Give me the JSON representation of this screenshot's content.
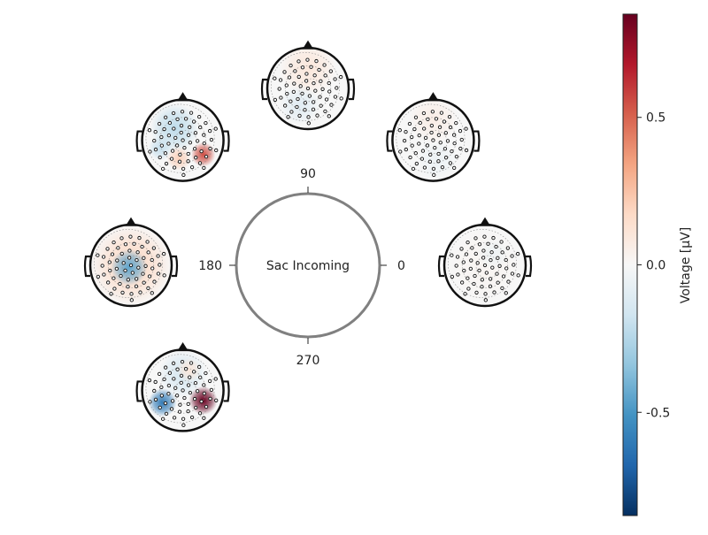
{
  "chart_data": {
    "type": "circular_topoplot",
    "center_label": "Sac Incoming",
    "angle_ticks": [
      "0",
      "90",
      "180",
      "270"
    ],
    "colorbar": {
      "label": "Voltage [µV]",
      "range": [
        -0.85,
        0.85
      ],
      "ticks": [
        -0.5,
        0.0,
        0.5
      ],
      "tick_labels": [
        "-0.5",
        "0.0",
        "0.5"
      ],
      "colormap": [
        "#053061",
        "#2166ac",
        "#4393c3",
        "#92c5de",
        "#d1e5f0",
        "#f7f7f7",
        "#fddbc7",
        "#f4a582",
        "#d6604d",
        "#b2182b",
        "#67001f"
      ]
    },
    "topoplots": [
      {
        "angle": 0,
        "blobs": [
          {
            "x": 0.0,
            "y": 0.0,
            "r": 0.9,
            "v": 0.02
          },
          {
            "x": 0.2,
            "y": -0.3,
            "r": 0.4,
            "v": -0.04
          }
        ]
      },
      {
        "angle": 45,
        "blobs": [
          {
            "x": 0.0,
            "y": -0.5,
            "r": 0.6,
            "v": 0.06
          },
          {
            "x": 0.1,
            "y": 0.5,
            "r": 0.5,
            "v": -0.05
          }
        ]
      },
      {
        "angle": 90,
        "blobs": [
          {
            "x": 0.0,
            "y": -0.5,
            "r": 0.7,
            "v": 0.1
          },
          {
            "x": -0.2,
            "y": 0.4,
            "r": 0.5,
            "v": -0.1
          }
        ]
      },
      {
        "angle": 135,
        "blobs": [
          {
            "x": -0.2,
            "y": -0.3,
            "r": 0.6,
            "v": -0.22
          },
          {
            "x": 0.5,
            "y": 0.35,
            "r": 0.3,
            "v": 0.55
          },
          {
            "x": -0.55,
            "y": 0.2,
            "r": 0.3,
            "v": -0.2
          },
          {
            "x": -0.1,
            "y": 0.45,
            "r": 0.3,
            "v": 0.2
          }
        ]
      },
      {
        "angle": 180,
        "blobs": [
          {
            "x": 0.0,
            "y": 0.0,
            "r": 1.0,
            "v": 0.18
          },
          {
            "x": -0.05,
            "y": 0.05,
            "r": 0.45,
            "v": -0.45
          }
        ]
      },
      {
        "angle": 225,
        "blobs": [
          {
            "x": 0.0,
            "y": -0.4,
            "r": 0.6,
            "v": -0.15
          },
          {
            "x": -0.5,
            "y": 0.3,
            "r": 0.35,
            "v": -0.6
          },
          {
            "x": 0.5,
            "y": 0.25,
            "r": 0.35,
            "v": 0.85
          },
          {
            "x": 0.15,
            "y": -0.5,
            "r": 0.3,
            "v": 0.1
          }
        ]
      }
    ]
  }
}
